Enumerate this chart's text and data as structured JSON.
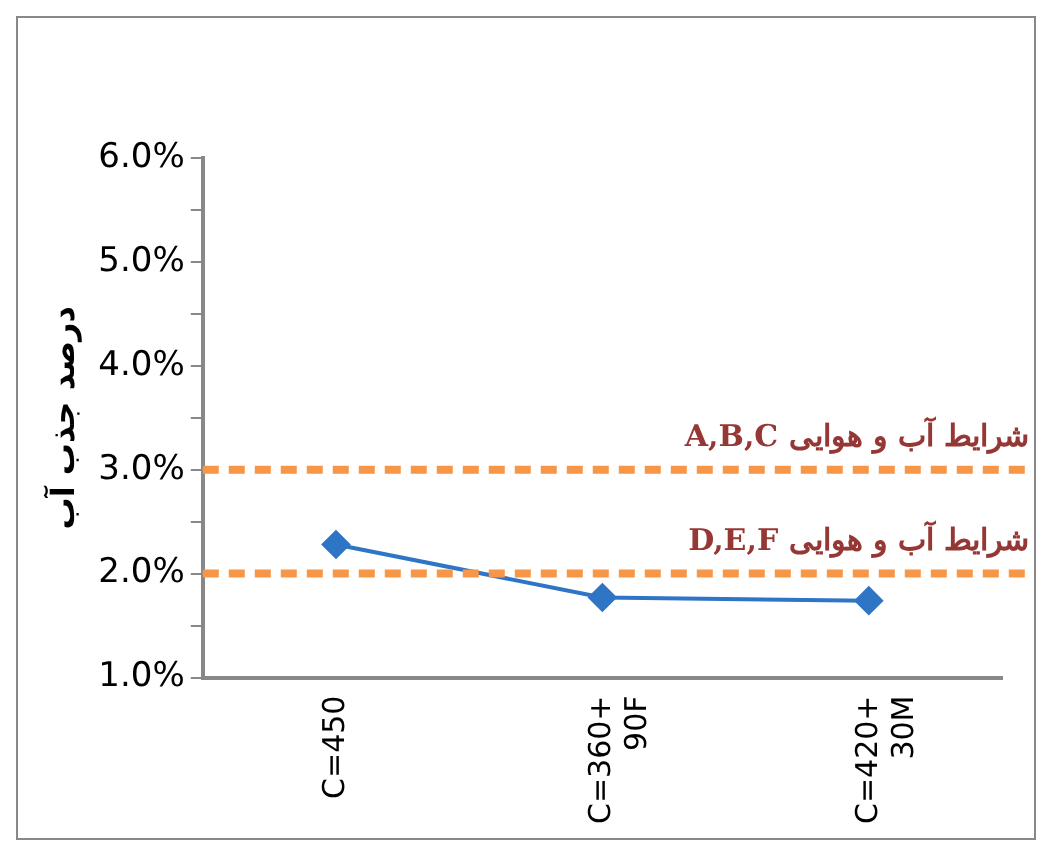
{
  "chart_data": {
    "type": "line",
    "ylabel": "درصد جذب آب",
    "categories": [
      "C=450",
      "C=360+ 90F",
      "C=420+ 30M"
    ],
    "series": [
      {
        "color": "#2e75c6",
        "values": [
          2.28,
          1.77,
          1.74
        ]
      }
    ],
    "ylim": [
      1,
      6
    ],
    "yticks": [
      {
        "value": 1,
        "label": "1.0%"
      },
      {
        "value": 1.5,
        "label": null
      },
      {
        "value": 2,
        "label": "2.0%"
      },
      {
        "value": 2.5,
        "label": null
      },
      {
        "value": 3,
        "label": "3.0%"
      },
      {
        "value": 3.5,
        "label": null
      },
      {
        "value": 4,
        "label": "4.0%"
      },
      {
        "value": 4.5,
        "label": null
      },
      {
        "value": 5,
        "label": "5.0%"
      },
      {
        "value": 5.5,
        "label": null
      },
      {
        "value": 6,
        "label": "6.0%"
      }
    ],
    "ref_lines": [
      {
        "axis": "y",
        "value": 3,
        "label": "شرایط آب و هوایی A,B,C",
        "color": "#f79646",
        "line_style": "dashed"
      },
      {
        "axis": "y",
        "value": 2,
        "label": "شرایط آب و هوایی D,E,F",
        "color": "#f79646",
        "line_style": "dashed"
      }
    ],
    "grid": false,
    "legend": false,
    "marker": "diamond",
    "line_style": "solid"
  }
}
